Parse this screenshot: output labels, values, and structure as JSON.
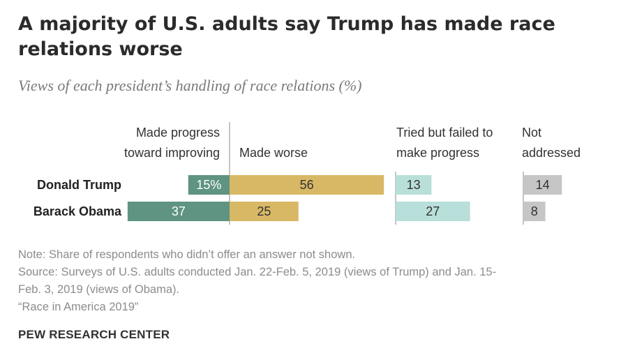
{
  "header": {
    "title": "A majority of U.S. adults say Trump has made race relations worse",
    "subtitle": "Views of each president’s handling of race relations (%)"
  },
  "columns": {
    "progress": [
      "Made progress",
      "toward improving"
    ],
    "worse": [
      "Made worse"
    ],
    "tried": [
      "Tried but failed to",
      "make progress"
    ],
    "not_addressed": [
      "Not",
      "addressed"
    ]
  },
  "chart_data": {
    "type": "bar",
    "categories": [
      "Donald Trump",
      "Barack Obama"
    ],
    "series": [
      {
        "name": "Made progress toward improving",
        "values": [
          15,
          37
        ],
        "labels": [
          "15%",
          "37"
        ],
        "color": "#5e9481"
      },
      {
        "name": "Made worse",
        "values": [
          56,
          25
        ],
        "labels": [
          "56",
          "25"
        ],
        "color": "#d8b865"
      },
      {
        "name": "Tried but failed to make progress",
        "values": [
          13,
          27
        ],
        "labels": [
          "13",
          "27"
        ],
        "color": "#b8dfd9"
      },
      {
        "name": "Not addressed",
        "values": [
          14,
          8
        ],
        "labels": [
          "14",
          "8"
        ],
        "color": "#c6c6c6"
      }
    ]
  },
  "notes": {
    "note": "Note: Share of respondents who didn’t offer an answer not shown.",
    "source_line1": "Source: Surveys of U.S. adults conducted Jan. 22-Feb. 5, 2019 (views of Trump) and Jan. 15-",
    "source_line2": "Feb. 3, 2019 (views of Obama).",
    "report": "“Race in America 2019”",
    "org": "PEW RESEARCH CENTER"
  }
}
